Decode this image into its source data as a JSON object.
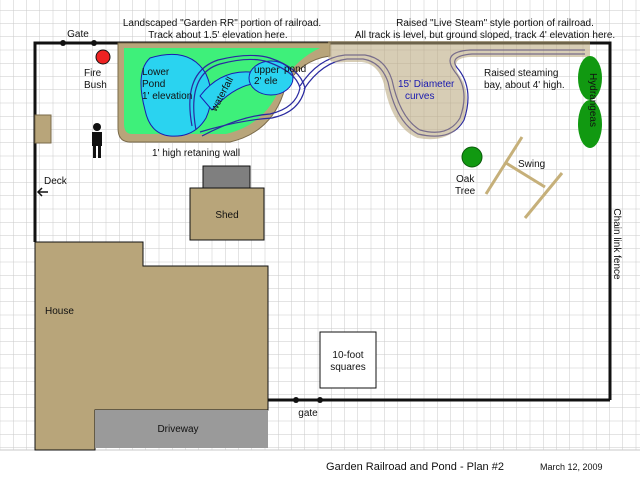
{
  "colors": {
    "grid": "#c9c9c9",
    "tan": "#b8a57a",
    "tan_dark": "#7a6a4a",
    "grass": "#3ef07a",
    "water": "#2ad3f0",
    "track": "#2a2aa0",
    "shed_roof": "#7f7f7f",
    "driveway": "#9a9a9a",
    "fire_bush": "#ee2222",
    "tree_green": "#119911",
    "swing": "#c6b07a"
  },
  "labels": {
    "gate_top": "Gate",
    "garden_rr_line1": "Landscaped \"Garden RR\" portion of railroad.",
    "garden_rr_line2": "Track about 1.5' elevation here.",
    "live_steam_line1": "Raised \"Live Steam\" style portion of railroad.",
    "live_steam_line2": "All track is level, but ground sloped, track 4' elevation here.",
    "fire_bush_line1": "Fire",
    "fire_bush_line2": "Bush",
    "lower_pond_line1": "Lower",
    "lower_pond_line2": "Pond",
    "lower_pond_line3": "1' elevation",
    "waterfall": "waterfall",
    "upper_pond_line1": "upper",
    "upper_pond_line2": "2' ele",
    "upper_pond_word": "pond",
    "diameter_line1": "15' Diameter",
    "diameter_line2": "curves",
    "steaming_line1": "Raised steaming",
    "steaming_line2": "bay, about 4' high.",
    "hydrangeas": "Hydrangeas",
    "wall": "1' high retaning wall",
    "deck": "Deck",
    "oak_line1": "Oak",
    "oak_line2": "Tree",
    "swing": "Swing",
    "chain_fence": "Chain link fence",
    "shed": "Shed",
    "house": "House",
    "squares_line1": "10-foot",
    "squares_line2": "squares",
    "gate_bottom": "gate",
    "driveway": "Driveway",
    "title": "Garden Railroad and Pond - Plan #2",
    "date": "March 12, 2009"
  }
}
